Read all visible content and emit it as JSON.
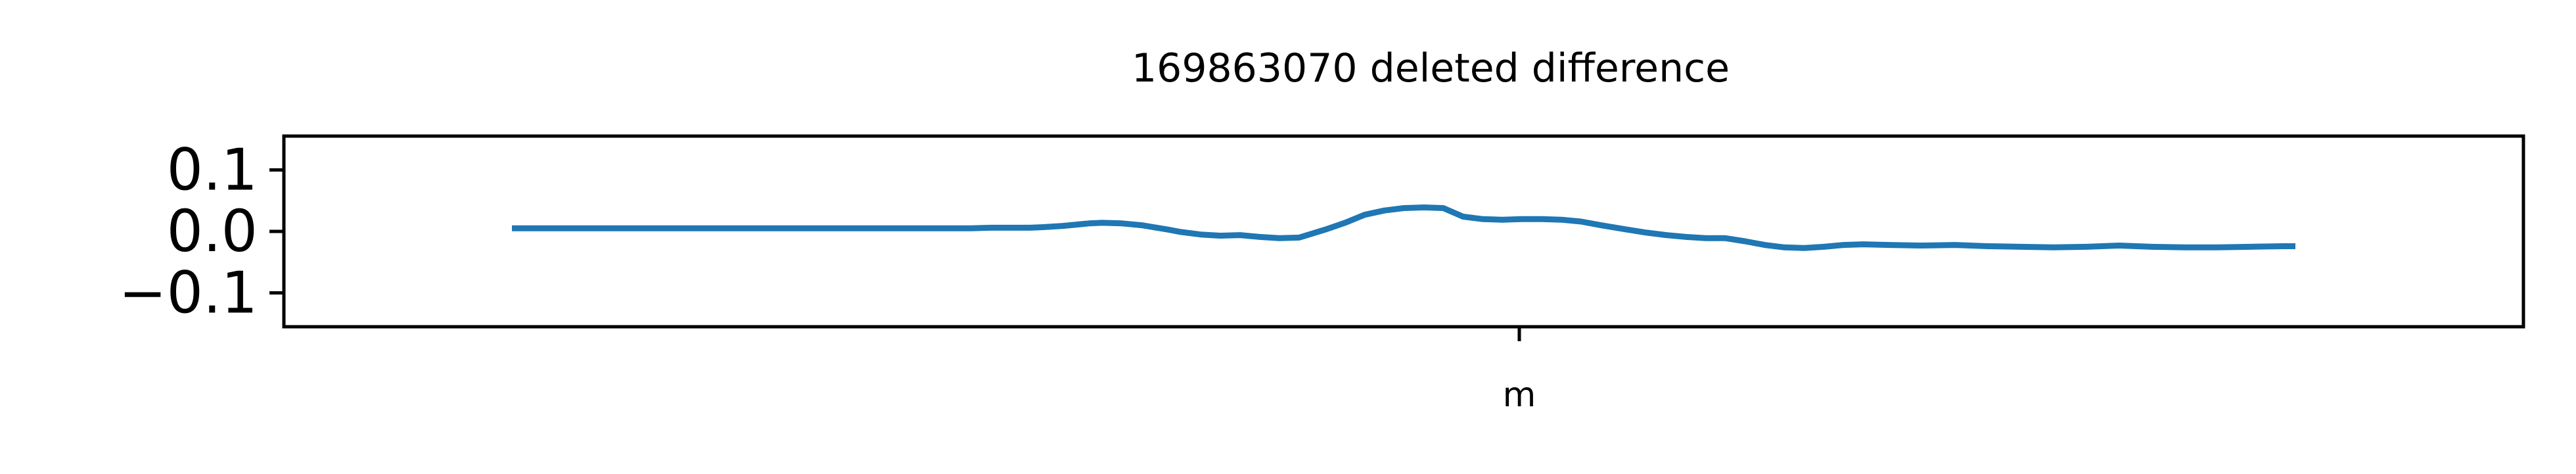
{
  "chart_data": {
    "type": "line",
    "title": "169863070 deleted difference",
    "xlabel": "",
    "ylabel": "",
    "x_ticks": [
      {
        "label": "m"
      }
    ],
    "y_ticks": [
      {
        "value": 0.1,
        "label": "0.1"
      },
      {
        "value": 0.0,
        "label": "0.0"
      },
      {
        "value": -0.1,
        "label": "−0.1"
      }
    ],
    "ylim": [
      -0.155,
      0.155
    ],
    "grid": false,
    "legend": "none",
    "series": [
      {
        "color": "#1f77b4",
        "x": [
          0,
          50,
          100,
          150,
          200,
          250,
          300,
          350,
          400,
          450,
          500,
          520,
          550,
          580,
          620,
          650,
          680,
          700,
          730,
          760,
          790,
          810,
          840,
          880,
          900,
          930,
          960,
          1000,
          1020,
          1050,
          1080,
          1110,
          1140,
          1170,
          1200,
          1240,
          1270,
          1300,
          1330,
          1360,
          1390,
          1420,
          1450,
          1480,
          1510,
          1540,
          1570,
          1600,
          1630,
          1660,
          1700,
          1730,
          1760,
          1790,
          1820,
          1850,
          1880,
          1910,
          1940,
          1970,
          2000,
          2030,
          2060,
          2100,
          2150,
          2200,
          2250,
          2300,
          2350,
          2400,
          2450,
          2500,
          2550,
          2600,
          2650,
          2700,
          2719
        ],
        "y": [
          0.005,
          0.005,
          0.005,
          0.005,
          0.005,
          0.005,
          0.005,
          0.005,
          0.005,
          0.005,
          0.005,
          0.005,
          0.005,
          0.005,
          0.005,
          0.005,
          0.005,
          0.005,
          0.006,
          0.006,
          0.006,
          0.007,
          0.009,
          0.013,
          0.014,
          0.013,
          0.01,
          0.003,
          -0.001,
          -0.005,
          -0.007,
          -0.006,
          -0.009,
          -0.011,
          -0.01,
          0.003,
          0.014,
          0.027,
          0.034,
          0.038,
          0.039,
          0.038,
          0.024,
          0.02,
          0.019,
          0.02,
          0.02,
          0.019,
          0.016,
          0.01,
          0.003,
          -0.002,
          -0.006,
          -0.009,
          -0.011,
          -0.011,
          -0.016,
          -0.022,
          -0.026,
          -0.027,
          -0.025,
          -0.022,
          -0.021,
          -0.022,
          -0.023,
          -0.022,
          -0.024,
          -0.025,
          -0.026,
          -0.025,
          -0.023,
          -0.025,
          -0.026,
          -0.026,
          -0.025,
          -0.024,
          -0.024
        ]
      }
    ]
  }
}
